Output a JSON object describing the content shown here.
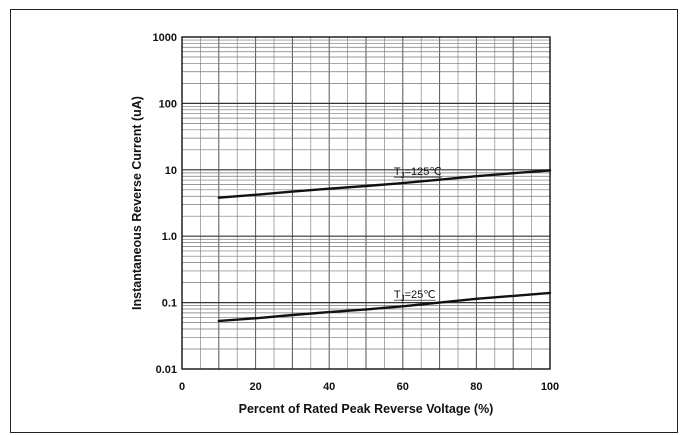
{
  "chart_data": {
    "type": "line",
    "title": "",
    "xlabel": "Percent of Rated Peak Reverse Voltage (%)",
    "ylabel": "Instantaneous Reverse Current (uA)",
    "xlim": [
      0,
      100
    ],
    "ylim": [
      0.01,
      1000
    ],
    "yscale": "log",
    "grid": true,
    "x_ticks": [
      0,
      20,
      40,
      60,
      80,
      100
    ],
    "x_tick_labels": [
      "0",
      "20",
      "40",
      "60",
      "80",
      "100"
    ],
    "y_ticks": [
      0.01,
      0.1,
      1,
      10,
      100,
      1000
    ],
    "y_tick_labels": [
      "0.01",
      "0.1",
      "1.0",
      "10",
      "100",
      "1000"
    ],
    "series": [
      {
        "name": "TJ=125℃",
        "label_main": "T",
        "label_sub": "J",
        "label_rest": "=125℃",
        "x": [
          10,
          20,
          30,
          40,
          50,
          60,
          70,
          80,
          90,
          100
        ],
        "y": [
          3.8,
          4.2,
          4.7,
          5.2,
          5.7,
          6.3,
          7.1,
          8.0,
          8.9,
          9.8
        ]
      },
      {
        "name": "TJ=25℃",
        "label_main": "T",
        "label_sub": "J",
        "label_rest": "=25℃",
        "x": [
          10,
          20,
          30,
          40,
          50,
          60,
          70,
          80,
          90,
          100
        ],
        "y": [
          0.053,
          0.058,
          0.065,
          0.072,
          0.079,
          0.088,
          0.1,
          0.114,
          0.126,
          0.14
        ]
      }
    ]
  }
}
